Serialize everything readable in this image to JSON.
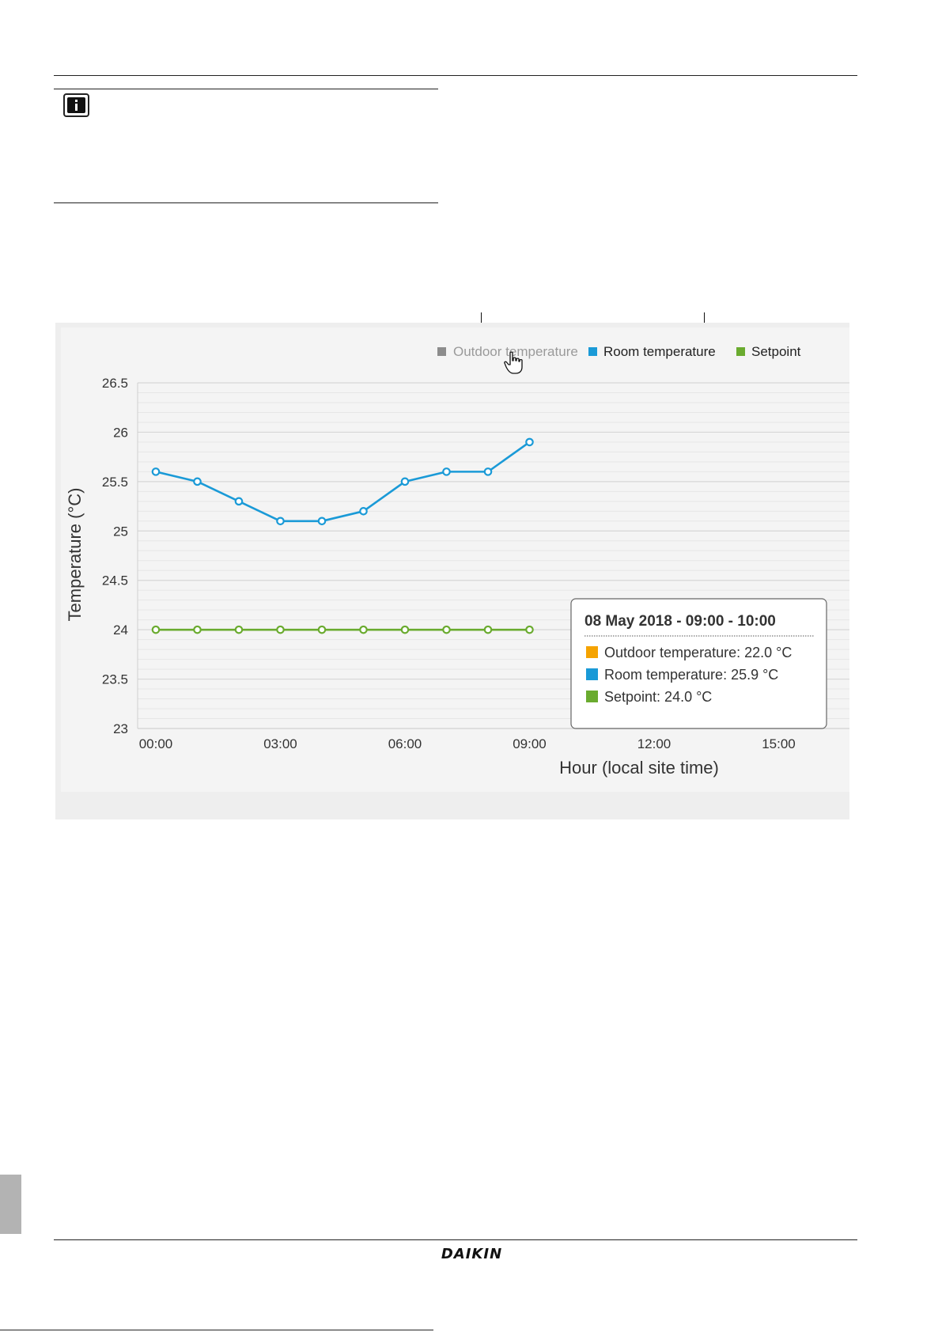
{
  "chart_data": {
    "type": "line",
    "xlabel": "Hour (local site time)",
    "ylabel": "Temperature (°C)",
    "ylim": [
      23,
      26.5
    ],
    "yticks": [
      "23",
      "23.5",
      "24",
      "24.5",
      "25",
      "25.5",
      "26",
      "26.5"
    ],
    "xticks": [
      "00:00",
      "03:00",
      "06:00",
      "09:00",
      "12:00",
      "15:00"
    ],
    "x": [
      0,
      1,
      2,
      3,
      4,
      5,
      6,
      7,
      8,
      9
    ],
    "series": [
      {
        "name": "Room temperature",
        "color": "#1a9ad7",
        "values": [
          25.6,
          25.5,
          25.3,
          25.1,
          25.1,
          25.2,
          25.5,
          25.6,
          25.6,
          25.9
        ]
      },
      {
        "name": "Setpoint",
        "color": "#6aab2f",
        "values": [
          24,
          24,
          24,
          24,
          24,
          24,
          24,
          24,
          24,
          24
        ]
      }
    ],
    "legend": [
      {
        "label": "Outdoor temperature",
        "color": "#8c8c8c",
        "state": "hidden"
      },
      {
        "label": "Room temperature",
        "color": "#1a9ad7",
        "state": "visible"
      },
      {
        "label": "Setpoint",
        "color": "#6aab2f",
        "state": "visible"
      }
    ],
    "legend_position": "top-right",
    "grid": true,
    "tooltip": {
      "title": "08 May 2018 - 09:00 - 10:00",
      "items": [
        {
          "label": "Outdoor temperature: 22.0 °C",
          "color": "#f5a300"
        },
        {
          "label": "Room temperature: 25.9 °C",
          "color": "#1a9ad7"
        },
        {
          "label": "Setpoint: 24.0 °C",
          "color": "#6aab2f"
        }
      ]
    }
  },
  "footer": {
    "logo": "DAIKIN"
  },
  "icons": {
    "note": "info-icon",
    "cursor": "hand-pointer-icon"
  }
}
